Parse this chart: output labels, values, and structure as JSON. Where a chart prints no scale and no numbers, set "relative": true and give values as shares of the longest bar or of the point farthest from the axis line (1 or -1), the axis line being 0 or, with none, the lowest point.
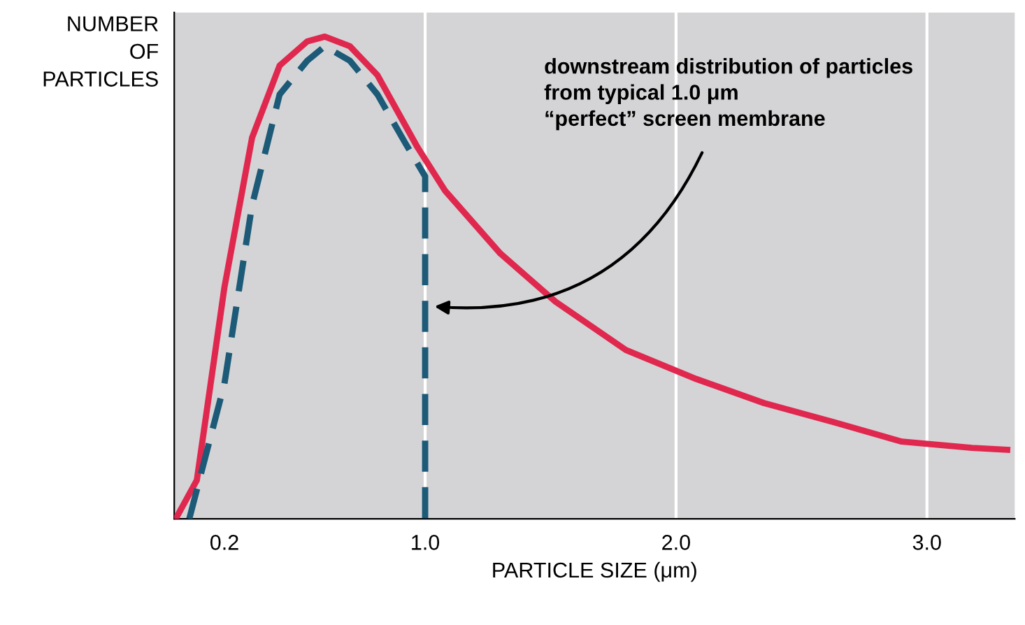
{
  "chart_data": {
    "type": "line",
    "relative": true,
    "xlabel": "PARTICLE SIZE (μm)",
    "ylabel": "NUMBER\nOF\nPARTICLES",
    "xlim": [
      0.0,
      3.35
    ],
    "xticks": [
      {
        "value": 0.2,
        "label": "0.2"
      },
      {
        "value": 1.0,
        "label": "1.0"
      },
      {
        "value": 2.0,
        "label": "2.0"
      },
      {
        "value": 3.0,
        "label": "3.0"
      }
    ],
    "grid": false,
    "legend": false,
    "marker": "none",
    "ref_lines": [
      {
        "axis": "x",
        "value": 1.0,
        "color": "#ffffff"
      },
      {
        "axis": "x",
        "value": 2.0,
        "color": "#ffffff"
      },
      {
        "axis": "x",
        "value": 3.0,
        "color": "#ffffff"
      }
    ],
    "annotations": [
      "downstream distribution of particles\nfrom typical 1.0 μm\n“perfect” screen membrane"
    ],
    "series": [
      {
        "color": "#e0284f",
        "line_style": "solid",
        "x": [
          0.006,
          0.09,
          0.2,
          0.31,
          0.42,
          0.53,
          0.6,
          0.7,
          0.81,
          0.97,
          1.08,
          1.3,
          1.52,
          1.8,
          2.08,
          2.35,
          2.63,
          2.9,
          3.18,
          3.32
        ],
        "values": [
          0,
          0.08,
          0.48,
          0.79,
          0.94,
          0.99,
          1.0,
          0.98,
          0.92,
          0.77,
          0.68,
          0.55,
          0.45,
          0.35,
          0.29,
          0.24,
          0.2,
          0.16,
          0.147,
          0.143
        ]
      },
      {
        "color": "#1c5a78",
        "line_style": "dashed",
        "x": [
          0.06,
          0.2,
          0.31,
          0.42,
          0.53,
          0.6,
          0.7,
          0.81,
          0.92,
          1.0,
          1.0
        ],
        "values": [
          0,
          0.28,
          0.65,
          0.88,
          0.95,
          0.98,
          0.95,
          0.88,
          0.78,
          0.71,
          0
        ]
      }
    ]
  }
}
